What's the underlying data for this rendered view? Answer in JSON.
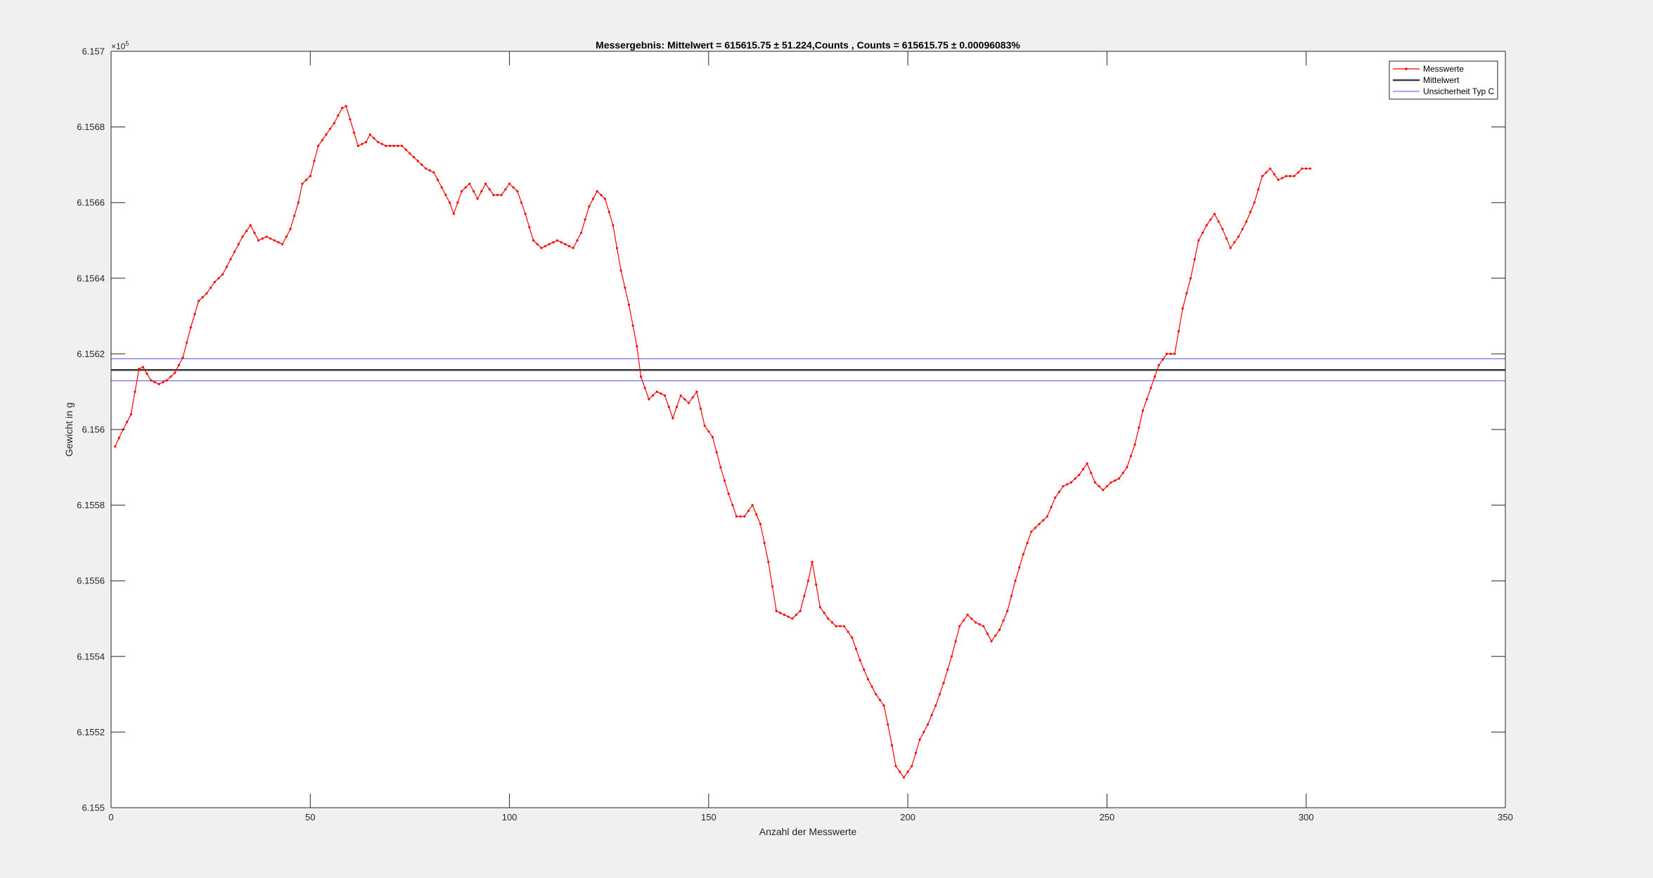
{
  "chart_data": {
    "type": "line",
    "title": "Messergebnis: Mittelwert = 615615.75 ± 51.224,Counts , Counts = 615615.75 ± 0.00096083%",
    "xlabel": "Anzahl der Messwerte",
    "ylabel": "Gewicht in g",
    "y_exponent_label": "×10",
    "y_exponent": "5",
    "xlim": [
      0,
      350
    ],
    "ylim": [
      615500,
      615700
    ],
    "x_ticks": [
      0,
      50,
      100,
      150,
      200,
      250,
      300,
      350
    ],
    "x_tick_labels": [
      "0",
      "50",
      "100",
      "150",
      "200",
      "250",
      "300",
      "350"
    ],
    "y_ticks": [
      615500,
      615520,
      615540,
      615560,
      615580,
      615600,
      615620,
      615640,
      615660,
      615680,
      615700
    ],
    "y_tick_labels": [
      "6.155",
      "6.1552",
      "6.1554",
      "6.1556",
      "6.1558",
      "6.156",
      "6.1562",
      "6.1564",
      "6.1566",
      "6.1568",
      "6.157"
    ],
    "grid": false,
    "legend_position": "top-right",
    "series": [
      {
        "name": "Messwerte",
        "color": "#ff0000",
        "marker": "dot",
        "anchors": [
          [
            1,
            615595.5
          ],
          [
            3,
            615600
          ],
          [
            5,
            615604
          ],
          [
            7,
            615616
          ],
          [
            8,
            615616.5
          ],
          [
            10,
            615613
          ],
          [
            12,
            615612
          ],
          [
            14,
            615613
          ],
          [
            16,
            615615
          ],
          [
            18,
            615619
          ],
          [
            20,
            615627
          ],
          [
            22,
            615634
          ],
          [
            24,
            615636
          ],
          [
            26,
            615639
          ],
          [
            28,
            615641
          ],
          [
            30,
            615645
          ],
          [
            33,
            615651
          ],
          [
            35,
            615654
          ],
          [
            37,
            615650
          ],
          [
            39,
            615651
          ],
          [
            41,
            615650
          ],
          [
            43,
            615649
          ],
          [
            45,
            615653
          ],
          [
            47,
            615660
          ],
          [
            48,
            615665
          ],
          [
            50,
            615667
          ],
          [
            52,
            615675
          ],
          [
            54,
            615678
          ],
          [
            56,
            615681
          ],
          [
            58,
            615685
          ],
          [
            59,
            615685.5
          ],
          [
            60,
            615682
          ],
          [
            62,
            615675
          ],
          [
            64,
            615676
          ],
          [
            65,
            615678
          ],
          [
            67,
            615676
          ],
          [
            69,
            615675
          ],
          [
            71,
            615675
          ],
          [
            73,
            615675
          ],
          [
            75,
            615673
          ],
          [
            77,
            615671
          ],
          [
            79,
            615669
          ],
          [
            81,
            615668
          ],
          [
            83,
            615664
          ],
          [
            85,
            615660
          ],
          [
            86,
            615657
          ],
          [
            88,
            615663
          ],
          [
            90,
            615665
          ],
          [
            92,
            615661
          ],
          [
            94,
            615665
          ],
          [
            96,
            615662
          ],
          [
            98,
            615662
          ],
          [
            100,
            615665
          ],
          [
            102,
            615663
          ],
          [
            104,
            615657
          ],
          [
            106,
            615650
          ],
          [
            108,
            615648
          ],
          [
            110,
            615649
          ],
          [
            112,
            615650
          ],
          [
            114,
            615649
          ],
          [
            116,
            615648
          ],
          [
            118,
            615652
          ],
          [
            120,
            615659
          ],
          [
            122,
            615663
          ],
          [
            124,
            615661
          ],
          [
            126,
            615654
          ],
          [
            128,
            615642
          ],
          [
            130,
            615633
          ],
          [
            132,
            615622
          ],
          [
            133,
            615614
          ],
          [
            135,
            615608
          ],
          [
            137,
            615610
          ],
          [
            139,
            615609
          ],
          [
            141,
            615603
          ],
          [
            143,
            615609
          ],
          [
            145,
            615607
          ],
          [
            147,
            615610
          ],
          [
            149,
            615601
          ],
          [
            151,
            615598
          ],
          [
            153,
            615590
          ],
          [
            155,
            615583
          ],
          [
            157,
            615577
          ],
          [
            159,
            615577
          ],
          [
            161,
            615580
          ],
          [
            163,
            615575
          ],
          [
            165,
            615565
          ],
          [
            167,
            615552
          ],
          [
            169,
            615551
          ],
          [
            171,
            615550
          ],
          [
            173,
            615552
          ],
          [
            175,
            615560
          ],
          [
            176,
            615565
          ],
          [
            178,
            615553
          ],
          [
            180,
            615550
          ],
          [
            182,
            615548
          ],
          [
            184,
            615548
          ],
          [
            186,
            615545
          ],
          [
            188,
            615539
          ],
          [
            190,
            615534
          ],
          [
            192,
            615530
          ],
          [
            194,
            615527
          ],
          [
            195,
            615522
          ],
          [
            197,
            615511
          ],
          [
            199,
            615508
          ],
          [
            201,
            615511
          ],
          [
            203,
            615518
          ],
          [
            205,
            615522
          ],
          [
            207,
            615527
          ],
          [
            209,
            615533
          ],
          [
            211,
            615540
          ],
          [
            213,
            615548
          ],
          [
            215,
            615551
          ],
          [
            217,
            615549
          ],
          [
            219,
            615548
          ],
          [
            221,
            615544
          ],
          [
            223,
            615547
          ],
          [
            225,
            615552
          ],
          [
            227,
            615560
          ],
          [
            229,
            615567
          ],
          [
            231,
            615573
          ],
          [
            233,
            615575
          ],
          [
            235,
            615577
          ],
          [
            237,
            615582
          ],
          [
            239,
            615585
          ],
          [
            241,
            615586
          ],
          [
            243,
            615588
          ],
          [
            245,
            615591
          ],
          [
            247,
            615586
          ],
          [
            249,
            615584
          ],
          [
            251,
            615586
          ],
          [
            253,
            615587
          ],
          [
            255,
            615590
          ],
          [
            257,
            615596
          ],
          [
            259,
            615605
          ],
          [
            261,
            615611
          ],
          [
            263,
            615617
          ],
          [
            265,
            615620
          ],
          [
            267,
            615620
          ],
          [
            269,
            615632
          ],
          [
            271,
            615640
          ],
          [
            273,
            615650
          ],
          [
            275,
            615654
          ],
          [
            277,
            615657
          ],
          [
            279,
            615653
          ],
          [
            281,
            615648
          ],
          [
            283,
            615651
          ],
          [
            285,
            615655
          ],
          [
            287,
            615660
          ],
          [
            289,
            615667
          ],
          [
            291,
            615669
          ],
          [
            293,
            615666
          ],
          [
            295,
            615667
          ],
          [
            297,
            615667
          ],
          [
            299,
            615669
          ],
          [
            301,
            615669
          ]
        ]
      },
      {
        "name": "Mittelwert",
        "color": "#404040",
        "y": 615615.75
      },
      {
        "name": "Unsicherheit Typ C",
        "color": "#7070ff",
        "y_upper": 615618.7,
        "y_lower": 615612.9
      }
    ]
  }
}
